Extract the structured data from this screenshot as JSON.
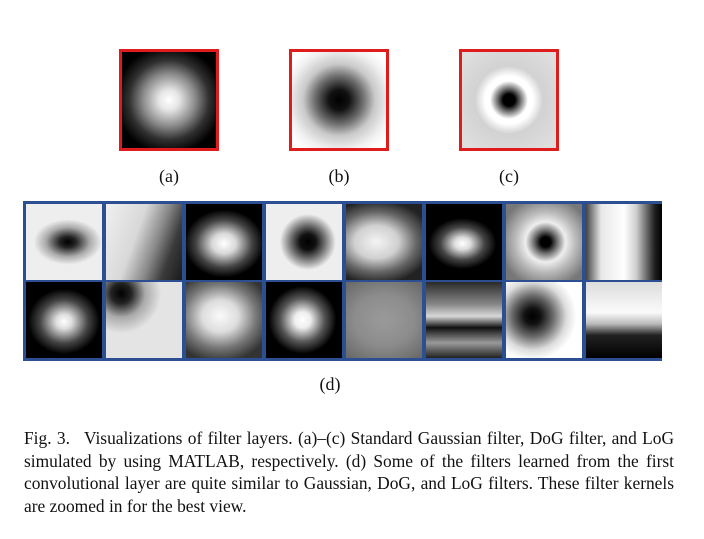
{
  "figure": {
    "top_kernels": [
      {
        "label": "(a)",
        "kind": "gaussian"
      },
      {
        "label": "(b)",
        "kind": "dog"
      },
      {
        "label": "(c)",
        "kind": "log"
      }
    ],
    "bottom_label": "(d)",
    "learned_filters_grid": {
      "rows": 2,
      "cols": 8
    }
  },
  "caption": {
    "fig_number": "Fig. 3.",
    "text": "Visualizations of filter layers. (a)–(c) Standard Gaussian filter, DoG filter, and LoG simulated by using MATLAB, respectively. (d) Some of the filters learned from the first convolutional layer are quite similar to Gaussian, DoG, and LoG filters. These filter kernels are zoomed in for the best view."
  },
  "colors": {
    "kernel_border": "#e01b1b",
    "grid_border": "#2b4f92"
  }
}
